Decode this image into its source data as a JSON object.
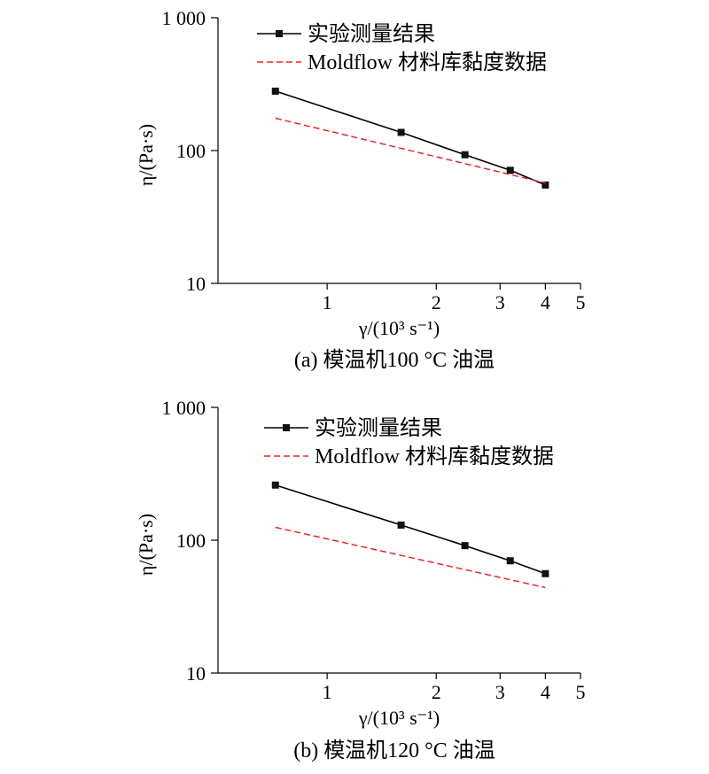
{
  "chart_data": [
    {
      "type": "line",
      "caption": "(a) 模温机100 °C 油温",
      "xlabel": "γ/(10³ s⁻¹)",
      "ylabel": "η/(Pa·s)",
      "xscale": "log",
      "yscale": "log",
      "xlim": [
        0.5,
        5
      ],
      "ylim": [
        10,
        1000
      ],
      "xticks": [
        {
          "v": 1,
          "label": "1"
        },
        {
          "v": 2,
          "label": "2"
        },
        {
          "v": 3,
          "label": "3"
        },
        {
          "v": 4,
          "label": "4"
        },
        {
          "v": 5,
          "label": "5"
        }
      ],
      "yticks": [
        {
          "v": 10,
          "label": "10"
        },
        {
          "v": 100,
          "label": "100"
        },
        {
          "v": 1000,
          "label": "1 000"
        }
      ],
      "legend_position": "top",
      "series": [
        {
          "name": "实验测量结果",
          "style": "line-markers",
          "color": "#000000",
          "x": [
            0.72,
            1.6,
            2.4,
            3.2,
            4.0
          ],
          "y": [
            280,
            137,
            93,
            71,
            55
          ]
        },
        {
          "name": "Moldflow 材料库黏度数据",
          "style": "dashed",
          "color": "#e8262c",
          "x": [
            0.72,
            4.0
          ],
          "y": [
            175,
            57
          ]
        }
      ]
    },
    {
      "type": "line",
      "caption": "(b) 模温机120 °C 油温",
      "xlabel": "γ/(10³ s⁻¹)",
      "ylabel": "η/(Pa·s)",
      "xscale": "log",
      "yscale": "log",
      "xlim": [
        0.5,
        5
      ],
      "ylim": [
        10,
        1000
      ],
      "xticks": [
        {
          "v": 1,
          "label": "1"
        },
        {
          "v": 2,
          "label": "2"
        },
        {
          "v": 3,
          "label": "3"
        },
        {
          "v": 4,
          "label": "4"
        },
        {
          "v": 5,
          "label": "5"
        }
      ],
      "yticks": [
        {
          "v": 10,
          "label": "10"
        },
        {
          "v": 100,
          "label": "100"
        },
        {
          "v": 1000,
          "label": "1 000"
        }
      ],
      "legend_position": "top",
      "series": [
        {
          "name": "实验测量结果",
          "style": "line-markers",
          "color": "#000000",
          "x": [
            0.72,
            1.6,
            2.4,
            3.2,
            4.0
          ],
          "y": [
            260,
            130,
            91,
            70,
            56
          ]
        },
        {
          "name": "Moldflow 材料库黏度数据",
          "style": "dashed",
          "color": "#e8262c",
          "x": [
            0.72,
            4.0
          ],
          "y": [
            125,
            44
          ]
        }
      ]
    }
  ]
}
